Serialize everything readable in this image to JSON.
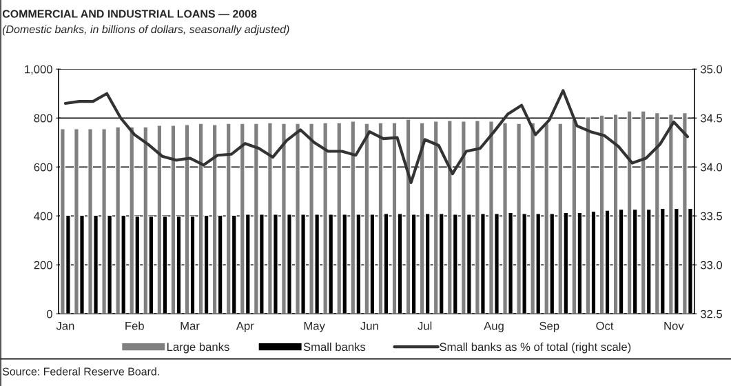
{
  "chart_data": {
    "type": "bar",
    "title": "COMMERCIAL AND INDUSTRIAL LOANS — 2008",
    "subtitle": "(Domestic banks, in billions of dollars, seasonally adjusted)",
    "categories": [
      "Jan",
      null,
      null,
      null,
      null,
      "Feb",
      null,
      null,
      null,
      "Mar",
      null,
      null,
      null,
      "Apr",
      null,
      null,
      null,
      null,
      "May",
      null,
      null,
      null,
      "Jun",
      null,
      null,
      null,
      "Jul",
      null,
      null,
      null,
      null,
      "Aug",
      null,
      null,
      null,
      "Sep",
      null,
      null,
      null,
      "Oct",
      null,
      null,
      null,
      null,
      "Nov",
      null
    ],
    "series": [
      {
        "name": "Large banks",
        "color": "#808080",
        "values": [
          756,
          756,
          756,
          756,
          764,
          764,
          764,
          770,
          770,
          773,
          778,
          773,
          778,
          778,
          778,
          781,
          778,
          778,
          778,
          781,
          781,
          787,
          778,
          781,
          781,
          795,
          781,
          787,
          790,
          787,
          790,
          787,
          781,
          778,
          781,
          778,
          778,
          795,
          805,
          812,
          815,
          829,
          829,
          822,
          815,
          822
        ]
      },
      {
        "name": "Small banks",
        "color": "#000000",
        "values": [
          403,
          403,
          403,
          403,
          403,
          399,
          399,
          399,
          399,
          399,
          403,
          403,
          403,
          407,
          407,
          407,
          407,
          407,
          407,
          407,
          407,
          407,
          407,
          410,
          410,
          407,
          410,
          410,
          407,
          407,
          410,
          410,
          414,
          410,
          410,
          410,
          414,
          414,
          419,
          423,
          427,
          427,
          427,
          431,
          431,
          431
        ]
      },
      {
        "name": "Small banks as % of total (right scale)",
        "type": "line",
        "axis": "y2",
        "color": "#333333",
        "values": [
          34.65,
          34.67,
          34.67,
          34.75,
          34.5,
          34.33,
          34.23,
          34.11,
          34.07,
          34.09,
          34.02,
          34.12,
          34.13,
          34.24,
          34.19,
          34.1,
          34.27,
          34.38,
          34.25,
          34.16,
          34.16,
          34.12,
          34.36,
          34.29,
          34.3,
          33.84,
          34.28,
          34.22,
          33.93,
          34.16,
          34.19,
          34.36,
          34.54,
          34.63,
          34.33,
          34.48,
          34.78,
          34.42,
          34.36,
          34.32,
          34.21,
          34.04,
          34.09,
          34.23,
          34.46,
          34.31
        ]
      }
    ],
    "ylim": [
      0,
      1000
    ],
    "yticks": [
      0,
      200,
      400,
      600,
      800,
      {
        "value": 1000,
        "label": "1,000"
      }
    ],
    "y2lim": [
      32.5,
      35.0
    ],
    "y2ticks": [
      {
        "value": 32.5,
        "label": "32.5"
      },
      {
        "value": 33.0,
        "label": "33.0"
      },
      {
        "value": 33.5,
        "label": "33.5"
      },
      {
        "value": 34.0,
        "label": "34.0"
      },
      {
        "value": 34.5,
        "label": "34.5"
      },
      {
        "value": 35.0,
        "label": "35.0"
      }
    ],
    "grid": "y",
    "legend": "bottom",
    "annotations": [
      "Source: Federal Reserve Board."
    ]
  }
}
